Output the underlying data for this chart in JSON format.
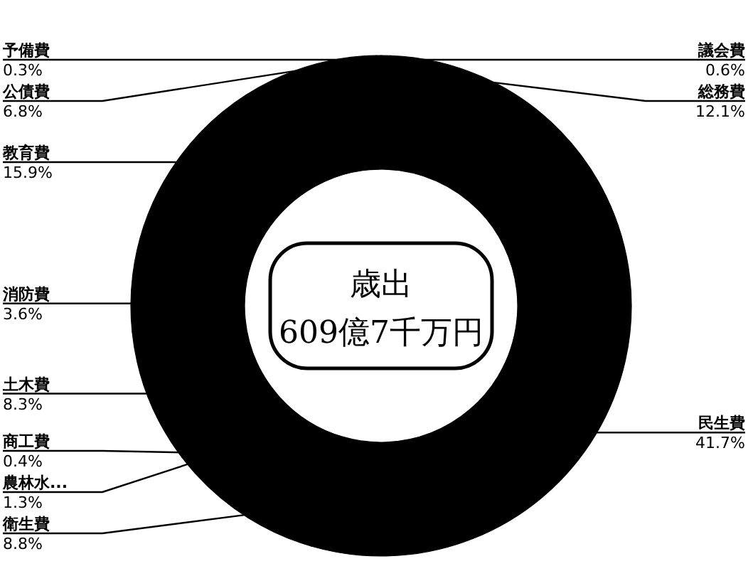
{
  "chart_data": {
    "type": "donut",
    "title": "歳出",
    "subtitle": "609億7千万円",
    "categories": [
      "議会費",
      "総務費",
      "民生費",
      "衛生費",
      "農林水...",
      "商工費",
      "土木費",
      "消防費",
      "教育費",
      "公債費",
      "予備費"
    ],
    "values": [
      0.6,
      12.1,
      41.7,
      8.8,
      1.3,
      0.4,
      8.3,
      3.6,
      15.9,
      6.8,
      0.3
    ],
    "value_labels": [
      "0.6%",
      "12.1%",
      "41.7%",
      "8.8%",
      "1.3%",
      "0.4%",
      "8.3%",
      "3.6%",
      "15.9%",
      "6.8%",
      "0.3%"
    ],
    "colors": [
      "#000000",
      "#000000",
      "#000000",
      "#000000",
      "#000000",
      "#000000",
      "#000000",
      "#000000",
      "#000000",
      "#000000",
      "#000000"
    ]
  }
}
